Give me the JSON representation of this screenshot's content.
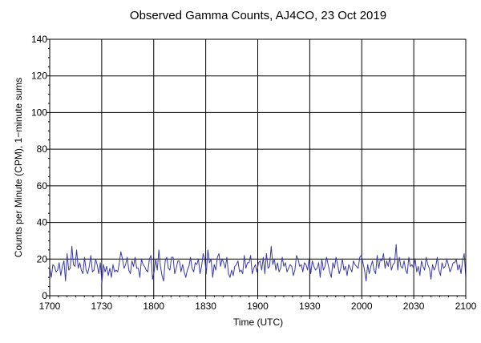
{
  "chart_data": {
    "type": "line",
    "title": "Observed Gamma Counts, AJ4CO, 23 Oct 2019",
    "xlabel": "Time (UTC)",
    "ylabel": "Counts per Minute (CPM), 1−minute sums",
    "x_start": "1700",
    "x_end": "2100",
    "x_ticks": [
      "1700",
      "1730",
      "1800",
      "1830",
      "1900",
      "1930",
      "2000",
      "2030",
      "2100"
    ],
    "y_ticks": [
      "0",
      "20",
      "40",
      "60",
      "80",
      "100",
      "120",
      "140"
    ],
    "ylim": [
      0,
      140
    ],
    "grid": true,
    "line_color": "#3a3aa8",
    "series": [
      {
        "values": [
          15,
          10,
          17,
          16,
          13,
          14,
          18,
          11,
          16,
          19,
          8,
          23,
          14,
          15,
          27,
          17,
          16,
          25,
          15,
          18,
          14,
          12,
          21,
          14,
          12,
          16,
          22,
          13,
          14,
          20,
          17,
          12,
          18,
          7,
          17,
          13,
          16,
          11,
          15,
          10,
          17,
          13,
          14,
          13,
          18,
          24,
          20,
          15,
          17,
          21,
          14,
          12,
          19,
          16,
          21,
          15,
          15,
          10,
          20,
          17,
          16,
          14,
          13,
          20,
          22,
          9,
          13,
          20,
          14,
          25,
          16,
          11,
          8,
          19,
          21,
          15,
          14,
          21,
          21,
          12,
          15,
          19,
          19,
          13,
          17,
          13,
          10,
          14,
          16,
          21,
          15,
          13,
          18,
          17,
          20,
          12,
          16,
          23,
          20,
          12,
          25,
          18,
          20,
          10,
          17,
          14,
          21,
          23,
          16,
          20,
          18,
          15,
          21,
          12,
          10,
          14,
          11,
          16,
          17,
          19,
          13,
          14,
          12,
          22,
          15,
          18,
          18,
          22,
          12,
          15,
          17,
          13,
          18,
          19,
          14,
          21,
          12,
          23,
          15,
          16,
          27,
          17,
          20,
          14,
          18,
          13,
          15,
          21,
          16,
          18,
          13,
          15,
          17,
          16,
          11,
          14,
          22,
          20,
          16,
          17,
          13,
          18,
          17,
          14,
          20,
          12,
          19,
          16,
          14,
          15,
          18,
          10,
          20,
          14,
          16,
          21,
          17,
          13,
          10,
          18,
          15,
          21,
          17,
          12,
          15,
          20,
          14,
          16,
          11,
          17,
          15,
          13,
          19,
          17,
          16,
          15,
          21,
          22,
          18,
          14,
          8,
          17,
          12,
          16,
          19,
          14,
          12,
          22,
          15,
          20,
          19,
          23,
          15,
          19,
          16,
          21,
          14,
          17,
          18,
          28,
          14,
          21,
          16,
          15,
          19,
          14,
          12,
          21,
          16,
          17,
          15,
          20,
          13,
          16,
          11,
          19,
          16,
          14,
          21,
          17,
          15,
          9,
          17,
          14,
          16,
          21,
          14,
          11,
          18,
          15,
          16,
          20,
          17,
          13,
          15,
          18,
          18,
          20,
          14,
          17,
          12,
          19,
          23,
          10
        ]
      }
    ]
  }
}
